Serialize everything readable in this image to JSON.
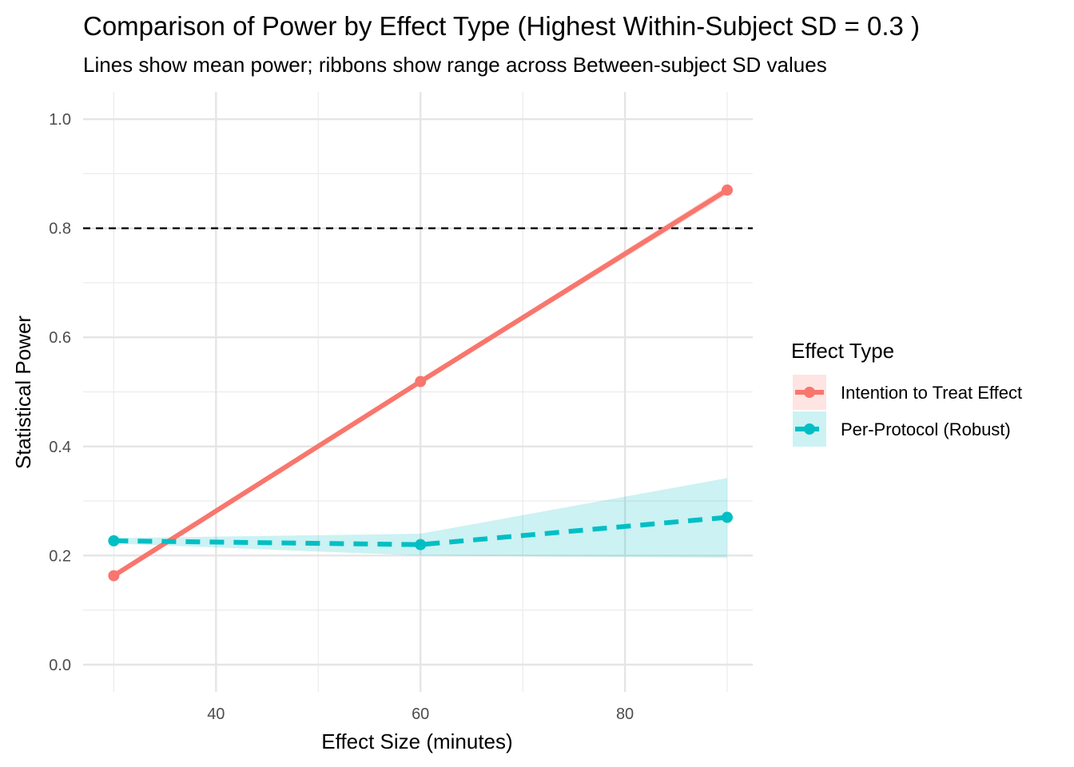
{
  "chart_data": {
    "type": "line",
    "title": "Comparison of Power by Effect Type (Highest Within-Subject SD = 0.3 )",
    "subtitle": "Lines show mean power; ribbons show range across Between-subject SD values",
    "xlabel": "Effect Size (minutes)",
    "ylabel": "Statistical Power",
    "xlim": [
      27,
      92.5
    ],
    "ylim": [
      -0.05,
      1.05
    ],
    "x_ticks": [
      40,
      60,
      80
    ],
    "x_tick_labels": [
      "40",
      "60",
      "80"
    ],
    "y_ticks": [
      0.0,
      0.2,
      0.4,
      0.6,
      0.8,
      1.0
    ],
    "y_tick_labels": [
      "0.0",
      "0.2",
      "0.4",
      "0.6",
      "0.8",
      "1.0"
    ],
    "grid": true,
    "reference_line": {
      "y": 0.8,
      "style": "dashed",
      "color": "#000000"
    },
    "legend": {
      "title": "Effect Type",
      "position": "right"
    },
    "series": [
      {
        "name": "Intention to Treat Effect",
        "color": "#F8766D",
        "linetype": "solid",
        "x": [
          30,
          60,
          90
        ],
        "values": [
          0.163,
          0.519,
          0.87
        ],
        "ribbon_min": [
          0.16,
          0.515,
          0.862
        ],
        "ribbon_max": [
          0.166,
          0.523,
          0.878
        ]
      },
      {
        "name": "Per-Protocol (Robust)",
        "color": "#00BFC4",
        "linetype": "dashed",
        "x": [
          30,
          60,
          90
        ],
        "values": [
          0.227,
          0.22,
          0.27
        ],
        "ribbon_min": [
          0.222,
          0.2,
          0.196
        ],
        "ribbon_max": [
          0.232,
          0.24,
          0.342
        ]
      }
    ]
  }
}
